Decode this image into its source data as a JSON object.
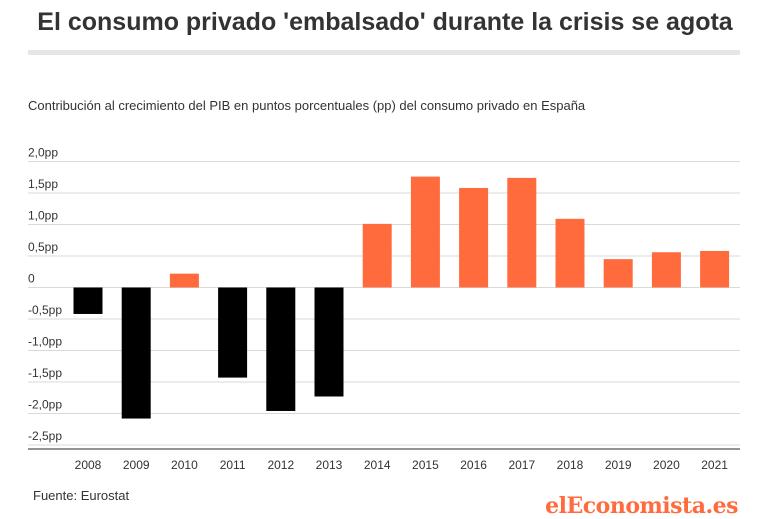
{
  "title": "El consumo privado 'embalsado' durante la crisis se agota",
  "subtitle": "Contribución al crecimiento del PIB en puntos porcentuales (pp) del consumo privado en España",
  "source": "Fuente: Eurostat",
  "brand": "elEconomista.es",
  "colors": {
    "negative": "#000000",
    "positive": "#ff6b3d",
    "grid": "#d9d9d9",
    "text": "#333333"
  },
  "chart_data": {
    "type": "bar",
    "categories": [
      "2008",
      "2009",
      "2010",
      "2011",
      "2012",
      "2013",
      "2014",
      "2015",
      "2016",
      "2017",
      "2018",
      "2019",
      "2020",
      "2021"
    ],
    "values": [
      -0.42,
      -2.08,
      0.22,
      -1.43,
      -1.96,
      -1.73,
      1.01,
      1.76,
      1.58,
      1.74,
      1.09,
      0.45,
      0.56,
      0.58
    ],
    "yticks": [
      2.0,
      1.5,
      1.0,
      0.5,
      0,
      -0.5,
      -1.0,
      -1.5,
      -2.0,
      -2.5
    ],
    "ytick_labels": [
      "2,0pp",
      "1,5pp",
      "1,0pp",
      "0,5pp",
      "0",
      "-0,5pp",
      "-1,0pp",
      "-1,5pp",
      "-2,0pp",
      "-2,5pp"
    ],
    "ylim": [
      -2.6,
      2.0
    ],
    "grid": true,
    "legend": "none"
  }
}
